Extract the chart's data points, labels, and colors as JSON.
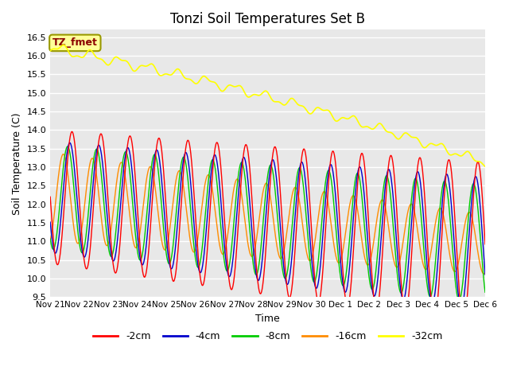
{
  "title": "Tonzi Soil Temperatures Set B",
  "xlabel": "Time",
  "ylabel": "Soil Temperature (C)",
  "ylim": [
    9.5,
    16.7
  ],
  "annotation_text": "TZ_fmet",
  "annotation_color": "#8B0000",
  "annotation_bg": "#FFFF99",
  "annotation_border": "#999900",
  "colors": {
    "-2cm": "#FF0000",
    "-4cm": "#0000CC",
    "-8cm": "#00CC00",
    "-16cm": "#FF8C00",
    "-32cm": "#FFFF00"
  },
  "legend_labels": [
    "-2cm",
    "-4cm",
    "-8cm",
    "-16cm",
    "-32cm"
  ],
  "x_tick_labels": [
    "Nov 21",
    "Nov 22",
    "Nov 23",
    "Nov 24",
    "Nov 25",
    "Nov 26",
    "Nov 27",
    "Nov 28",
    "Nov 29",
    "Nov 30",
    "Dec 1",
    "Dec 2",
    "Dec 3",
    "Dec 4",
    "Dec 5",
    "Dec 6"
  ],
  "n_points": 1440,
  "total_days": 15,
  "bg_color": "#E8E8E8",
  "grid_color": "#FFFFFF"
}
